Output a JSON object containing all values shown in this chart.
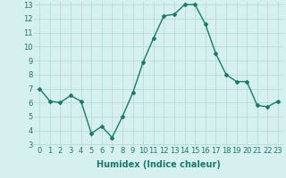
{
  "x": [
    0,
    1,
    2,
    3,
    4,
    5,
    6,
    7,
    8,
    9,
    10,
    11,
    12,
    13,
    14,
    15,
    16,
    17,
    18,
    19,
    20,
    21,
    22,
    23
  ],
  "y": [
    7.0,
    6.1,
    6.0,
    6.5,
    6.1,
    3.8,
    4.3,
    3.5,
    5.0,
    6.7,
    8.9,
    10.6,
    12.2,
    12.3,
    13.0,
    13.0,
    11.6,
    9.5,
    8.0,
    7.5,
    7.5,
    5.8,
    5.7,
    6.1
  ],
  "line_color": "#1a7a6a",
  "marker": "D",
  "marker_size": 2,
  "line_width": 1.0,
  "bg_color": "#d5f0ee",
  "grid_color": "#b0d8d4",
  "xlabel": "Humidex (Indice chaleur)",
  "ylim_min": 3,
  "ylim_max": 13,
  "xlim_min": 0,
  "xlim_max": 23,
  "yticks": [
    3,
    4,
    5,
    6,
    7,
    8,
    9,
    10,
    11,
    12,
    13
  ],
  "xticks": [
    0,
    1,
    2,
    3,
    4,
    5,
    6,
    7,
    8,
    9,
    10,
    11,
    12,
    13,
    14,
    15,
    16,
    17,
    18,
    19,
    20,
    21,
    22,
    23
  ],
  "tick_label_fontsize": 6,
  "xlabel_fontsize": 7,
  "xlabel_fontweight": "bold"
}
